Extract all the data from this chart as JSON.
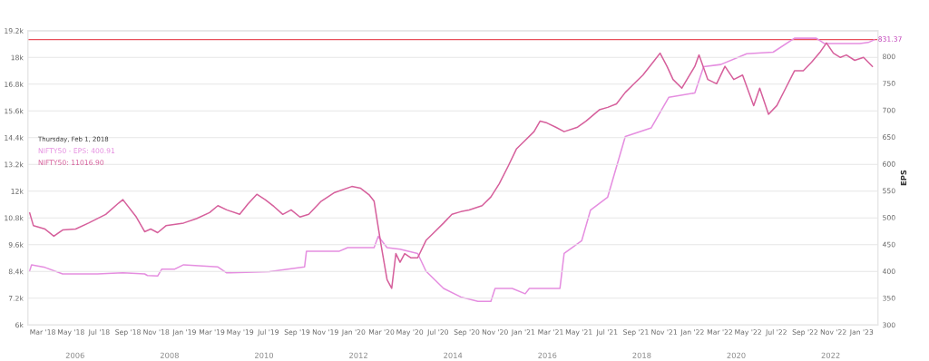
{
  "chart_data": {
    "type": "line",
    "y2label": "EPS",
    "annotations": [
      "Thursday, Feb 1, 2018",
      "NIFTY50 - EPS: 400.91",
      "NIFTY50: 11016.90",
      "2006",
      "2008",
      "2010",
      "2012",
      "2014",
      "2016",
      "2018",
      "2020",
      "2022"
    ],
    "grid": "y",
    "xlim": [
      "2018-01-28",
      "2023-02-05"
    ],
    "xticks": [
      {
        "value": "2018-03-01",
        "label": "Mar '18"
      },
      {
        "value": "2018-05-01",
        "label": "May '18"
      },
      {
        "value": "2018-07-01",
        "label": "Jul '18"
      },
      {
        "value": "2018-09-01",
        "label": "Sep '18"
      },
      {
        "value": "2018-11-01",
        "label": "Nov '18"
      },
      {
        "value": "2019-01-01",
        "label": "Jan '19"
      },
      {
        "value": "2019-03-01",
        "label": "Mar '19"
      },
      {
        "value": "2019-05-01",
        "label": "May '19"
      },
      {
        "value": "2019-07-01",
        "label": "Jul '19"
      },
      {
        "value": "2019-09-01",
        "label": "Sep '19"
      },
      {
        "value": "2019-11-01",
        "label": "Nov '19"
      },
      {
        "value": "2020-01-01",
        "label": "Jan '20"
      },
      {
        "value": "2020-03-01",
        "label": "Mar '20"
      },
      {
        "value": "2020-05-01",
        "label": "May '20"
      },
      {
        "value": "2020-07-01",
        "label": "Jul '20"
      },
      {
        "value": "2020-09-01",
        "label": "Sep '20"
      },
      {
        "value": "2020-11-01",
        "label": "Nov '20"
      },
      {
        "value": "2021-01-01",
        "label": "Jan '21"
      },
      {
        "value": "2021-03-01",
        "label": "Mar '21"
      },
      {
        "value": "2021-05-01",
        "label": "May '21"
      },
      {
        "value": "2021-07-01",
        "label": "Jul '21"
      },
      {
        "value": "2021-09-01",
        "label": "Sep '21"
      },
      {
        "value": "2021-11-01",
        "label": "Nov '21"
      },
      {
        "value": "2022-01-01",
        "label": "Jan '22"
      },
      {
        "value": "2022-03-01",
        "label": "Mar '22"
      },
      {
        "value": "2022-05-01",
        "label": "May '22"
      },
      {
        "value": "2022-07-01",
        "label": "Jul '22"
      },
      {
        "value": "2022-09-01",
        "label": "Sep '22"
      },
      {
        "value": "2022-11-01",
        "label": "Nov '22"
      },
      {
        "value": "2023-01-01",
        "label": "Jan '23"
      }
    ],
    "ylim": [
      6000,
      19200
    ],
    "yticks": [
      {
        "value": 6000,
        "label": "6k"
      },
      {
        "value": 7200,
        "label": "7.2k"
      },
      {
        "value": 8400,
        "label": "8.4k"
      },
      {
        "value": 9600,
        "label": "9.6k"
      },
      {
        "value": 10800,
        "label": "10.8k"
      },
      {
        "value": 12000,
        "label": "12k"
      },
      {
        "value": 13200,
        "label": "13.2k"
      },
      {
        "value": 14400,
        "label": "14.4k"
      },
      {
        "value": 15600,
        "label": "15.6k"
      },
      {
        "value": 16800,
        "label": "16.8k"
      },
      {
        "value": 18000,
        "label": "18k"
      },
      {
        "value": 19200,
        "label": "19.2k"
      }
    ],
    "y2lim": [
      300,
      848
    ],
    "y2ticks": [
      300,
      350,
      400,
      450,
      500,
      550,
      600,
      650,
      700,
      750,
      800
    ],
    "ref_lines": [
      {
        "axis": "y2",
        "value": 831.37,
        "label": "831.37",
        "color": "#e8505b"
      }
    ],
    "series": [
      {
        "color": "#e58ee0",
        "axis": "y2",
        "x": [
          "2018-02-01",
          "2018-02-05",
          "2018-03-06",
          "2018-04-13",
          "2018-06-27",
          "2018-08-21",
          "2018-10-07",
          "2018-10-13",
          "2018-11-04",
          "2018-11-13",
          "2018-12-11",
          "2018-12-30",
          "2019-03-14",
          "2019-04-02",
          "2019-07-03",
          "2019-09-17",
          "2019-09-21",
          "2019-11-30",
          "2019-12-19",
          "2020-02-14",
          "2020-02-23",
          "2020-03-13",
          "2020-04-10",
          "2020-05-18",
          "2020-06-05",
          "2020-07-13",
          "2020-08-19",
          "2020-09-25",
          "2020-10-23",
          "2020-11-01",
          "2020-12-08",
          "2021-01-05",
          "2021-01-14",
          "2021-03-21",
          "2021-03-30",
          "2021-05-07",
          "2021-05-26",
          "2021-07-02",
          "2021-08-09",
          "2021-10-04",
          "2021-11-11",
          "2022-01-06",
          "2022-01-25",
          "2022-03-03",
          "2022-04-28",
          "2022-06-24",
          "2022-08-09",
          "2022-09-25",
          "2022-10-13",
          "2022-12-28",
          "2023-01-15",
          "2023-01-28"
        ],
        "values": [
          401,
          412,
          407,
          395,
          395,
          397,
          395,
          392,
          391,
          404,
          404,
          412,
          408,
          397,
          399,
          408,
          437,
          437,
          444,
          444,
          465,
          444,
          441,
          433,
          400,
          368,
          352,
          344,
          344,
          368,
          368,
          358,
          368,
          368,
          433,
          457,
          514,
          538,
          651,
          667,
          724,
          732,
          781,
          785,
          805,
          808,
          834,
          834,
          824,
          824,
          826,
          831
        ]
      },
      {
        "color": "#d6609c",
        "x": [
          "2018-02-01",
          "2018-02-09",
          "2018-03-06",
          "2018-03-25",
          "2018-04-13",
          "2018-05-11",
          "2018-06-08",
          "2018-07-15",
          "2018-08-12",
          "2018-08-21",
          "2018-09-19",
          "2018-10-07",
          "2018-10-20",
          "2018-11-04",
          "2018-11-22",
          "2018-12-30",
          "2019-01-27",
          "2019-02-24",
          "2019-03-14",
          "2019-04-02",
          "2019-04-30",
          "2019-05-18",
          "2019-06-06",
          "2019-06-24",
          "2019-07-13",
          "2019-08-01",
          "2019-08-19",
          "2019-09-07",
          "2019-09-26",
          "2019-10-23",
          "2019-11-21",
          "2019-12-28",
          "2020-01-16",
          "2020-02-04",
          "2020-02-14",
          "2020-02-29",
          "2020-03-13",
          "2020-03-23",
          "2020-04-01",
          "2020-04-10",
          "2020-04-20",
          "2020-05-03",
          "2020-05-18",
          "2020-06-05",
          "2020-06-24",
          "2020-07-13",
          "2020-07-31",
          "2020-08-19",
          "2020-09-06",
          "2020-10-04",
          "2020-10-23",
          "2020-11-10",
          "2020-11-29",
          "2020-12-17",
          "2021-01-05",
          "2021-01-24",
          "2021-02-06",
          "2021-02-21",
          "2021-03-12",
          "2021-03-30",
          "2021-04-28",
          "2021-05-16",
          "2021-06-14",
          "2021-07-02",
          "2021-07-21",
          "2021-08-09",
          "2021-08-28",
          "2021-09-16",
          "2021-10-08",
          "2021-10-23",
          "2021-11-07",
          "2021-11-20",
          "2021-12-09",
          "2022-01-06",
          "2022-01-15",
          "2022-02-03",
          "2022-02-22",
          "2022-03-12",
          "2022-03-31",
          "2022-04-19",
          "2022-05-13",
          "2022-05-26",
          "2022-06-14",
          "2022-07-02",
          "2022-07-21",
          "2022-08-09",
          "2022-08-28",
          "2022-09-15",
          "2022-10-04",
          "2022-10-17",
          "2022-11-01",
          "2022-11-16",
          "2022-11-29",
          "2022-12-17",
          "2023-01-05",
          "2023-01-24"
        ],
        "values": [
          11020,
          10450,
          10300,
          9980,
          10260,
          10300,
          10570,
          10960,
          11470,
          11620,
          10840,
          10180,
          10300,
          10140,
          10450,
          10570,
          10770,
          11040,
          11350,
          11160,
          10960,
          11430,
          11860,
          11620,
          11310,
          10960,
          11160,
          10840,
          10960,
          11550,
          11940,
          12210,
          12130,
          11820,
          11550,
          9590,
          8030,
          7640,
          9200,
          8810,
          9200,
          9010,
          9010,
          9790,
          10180,
          10570,
          10960,
          11080,
          11160,
          11350,
          11740,
          12330,
          13110,
          13890,
          14280,
          14670,
          15140,
          15060,
          14870,
          14670,
          14870,
          15140,
          15650,
          15760,
          15920,
          16430,
          16820,
          17210,
          17790,
          18190,
          17600,
          17010,
          16620,
          17600,
          18110,
          17010,
          16820,
          17600,
          17010,
          17210,
          15840,
          16620,
          15450,
          15840,
          16620,
          17400,
          17400,
          17790,
          18260,
          18650,
          18190,
          18000,
          18110,
          17870,
          18000,
          17600
        ]
      }
    ]
  }
}
